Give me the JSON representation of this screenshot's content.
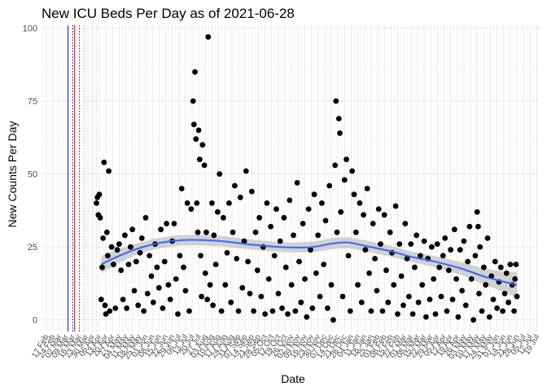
{
  "chart_data": {
    "type": "scatter",
    "title": "New ICU Beds Per Day as of 2021-06-28",
    "xlabel": "Date",
    "ylabel": "New Counts Per Day",
    "ylim": [
      -4,
      101
    ],
    "yticks": [
      0,
      25,
      50,
      75,
      100
    ],
    "xlim": [
      "2020-02-12",
      "2021-07-22"
    ],
    "x_tick_labels": [
      "17 Feb",
      "24 Feb",
      "02 Mar",
      "09 Mar",
      "16 Mar",
      "23 Mar",
      "30 Mar",
      "06 Apr",
      "13 Apr",
      "20 Apr",
      "27 Apr",
      "04 May",
      "11 May",
      "18 May",
      "25 May",
      "01 Jun",
      "08 Jun",
      "15 Jun",
      "22 Jun",
      "29 Jun",
      "06 Jul",
      "13 Jul",
      "20 Jul",
      "27 Jul",
      "03 Aug",
      "10 Aug",
      "17 Aug",
      "24 Aug",
      "31 Aug",
      "07 Sep",
      "14 Sep",
      "21 Sep",
      "28 Sep",
      "05 Oct",
      "12 Oct",
      "19 Oct",
      "26 Oct",
      "02 Nov",
      "09 Nov",
      "16 Nov",
      "23 Nov",
      "30 Nov",
      "07 Dec",
      "14 Dec",
      "21 Dec",
      "28 Dec",
      "04 Jan",
      "11 Jan",
      "18 Jan",
      "25 Jan",
      "01 Feb",
      "08 Feb",
      "15 Feb",
      "22 Feb",
      "01 Mar",
      "08 Mar",
      "15 Mar",
      "22 Mar",
      "29 Mar",
      "05 Apr",
      "12 Apr",
      "19 Apr",
      "26 Apr",
      "03 May",
      "10 May",
      "17 May",
      "24 May",
      "31 May",
      "07 Jun",
      "14 Jun",
      "21 Jun",
      "28 Jun",
      "05 Jul",
      "12 Jul",
      "19 Jul"
    ],
    "x_tick_dates": [
      "2020-02-17",
      "2020-02-24",
      "2020-03-02",
      "2020-03-09",
      "2020-03-16",
      "2020-03-23",
      "2020-03-30",
      "2020-04-06",
      "2020-04-13",
      "2020-04-20",
      "2020-04-27",
      "2020-05-04",
      "2020-05-11",
      "2020-05-18",
      "2020-05-25",
      "2020-06-01",
      "2020-06-08",
      "2020-06-15",
      "2020-06-22",
      "2020-06-29",
      "2020-07-06",
      "2020-07-13",
      "2020-07-20",
      "2020-07-27",
      "2020-08-03",
      "2020-08-10",
      "2020-08-17",
      "2020-08-24",
      "2020-08-31",
      "2020-09-07",
      "2020-09-14",
      "2020-09-21",
      "2020-09-28",
      "2020-10-05",
      "2020-10-12",
      "2020-10-19",
      "2020-10-26",
      "2020-11-02",
      "2020-11-09",
      "2020-11-16",
      "2020-11-23",
      "2020-11-30",
      "2020-12-07",
      "2020-12-14",
      "2020-12-21",
      "2020-12-28",
      "2021-01-04",
      "2021-01-11",
      "2021-01-18",
      "2021-01-25",
      "2021-02-01",
      "2021-02-08",
      "2021-02-15",
      "2021-02-22",
      "2021-03-01",
      "2021-03-08",
      "2021-03-15",
      "2021-03-22",
      "2021-03-29",
      "2021-04-05",
      "2021-04-12",
      "2021-04-19",
      "2021-04-26",
      "2021-05-03",
      "2021-05-10",
      "2021-05-17",
      "2021-05-24",
      "2021-05-31",
      "2021-06-07",
      "2021-06-14",
      "2021-06-21",
      "2021-06-28",
      "2021-07-05",
      "2021-07-12",
      "2021-07-19"
    ],
    "grid": true,
    "legend": "none",
    "reference_lines": [
      {
        "date": "2020-03-11",
        "color": "#0000ff",
        "style": "solid"
      },
      {
        "date": "2020-03-16",
        "color": "#0000cc",
        "style": "dotted"
      },
      {
        "date": "2020-03-18",
        "color": "#cc0000",
        "style": "solid"
      },
      {
        "date": "2020-03-23",
        "color": "#cc0000",
        "style": "dotted"
      },
      {
        "date": "2020-03-28",
        "color": "#e6a0a0",
        "style": "dotted"
      },
      {
        "date": "2020-04-01",
        "color": "#f0c0c0",
        "style": "dotted"
      },
      {
        "date": "2020-04-06",
        "color": "#f0c8c8",
        "style": "dotted"
      },
      {
        "date": "2020-04-10",
        "color": "#f0c8c8",
        "style": "dotted"
      }
    ],
    "point_color": "#000000",
    "trend_color": "#3366ff",
    "band_color": "#bfbfbf",
    "trend": [
      {
        "x": "2020-04-15",
        "y": 19
      },
      {
        "x": "2020-05-01",
        "y": 21.5
      },
      {
        "x": "2020-05-20",
        "y": 24
      },
      {
        "x": "2020-06-10",
        "y": 26
      },
      {
        "x": "2020-07-05",
        "y": 27.2
      },
      {
        "x": "2020-07-25",
        "y": 27.4
      },
      {
        "x": "2020-08-20",
        "y": 27
      },
      {
        "x": "2020-09-15",
        "y": 26
      },
      {
        "x": "2020-10-10",
        "y": 25.2
      },
      {
        "x": "2020-11-05",
        "y": 24.8
      },
      {
        "x": "2020-11-25",
        "y": 25
      },
      {
        "x": "2020-12-15",
        "y": 26.2
      },
      {
        "x": "2021-01-01",
        "y": 26.5
      },
      {
        "x": "2021-01-20",
        "y": 25.3
      },
      {
        "x": "2021-02-15",
        "y": 23.5
      },
      {
        "x": "2021-03-10",
        "y": 21.5
      },
      {
        "x": "2021-04-05",
        "y": 19.8
      },
      {
        "x": "2021-05-01",
        "y": 17.5
      },
      {
        "x": "2021-05-25",
        "y": 14.8
      },
      {
        "x": "2021-06-15",
        "y": 13
      },
      {
        "x": "2021-06-28",
        "y": 12
      }
    ],
    "band": [
      {
        "x": "2020-04-15",
        "lo": 16,
        "hi": 22
      },
      {
        "x": "2020-05-01",
        "lo": 19,
        "hi": 24
      },
      {
        "x": "2020-05-20",
        "lo": 22,
        "hi": 26
      },
      {
        "x": "2020-06-10",
        "lo": 24.2,
        "hi": 27.8
      },
      {
        "x": "2020-07-05",
        "lo": 25.4,
        "hi": 29
      },
      {
        "x": "2020-07-25",
        "lo": 25.6,
        "hi": 29.2
      },
      {
        "x": "2020-08-20",
        "lo": 25.2,
        "hi": 28.8
      },
      {
        "x": "2020-09-15",
        "lo": 24.3,
        "hi": 27.7
      },
      {
        "x": "2020-10-10",
        "lo": 23.5,
        "hi": 26.9
      },
      {
        "x": "2020-11-05",
        "lo": 23.1,
        "hi": 26.5
      },
      {
        "x": "2020-11-25",
        "lo": 23.2,
        "hi": 26.8
      },
      {
        "x": "2020-12-15",
        "lo": 24.3,
        "hi": 28.1
      },
      {
        "x": "2021-01-01",
        "lo": 24.6,
        "hi": 28.4
      },
      {
        "x": "2021-01-20",
        "lo": 23.4,
        "hi": 27.2
      },
      {
        "x": "2021-02-15",
        "lo": 21.6,
        "hi": 25.4
      },
      {
        "x": "2021-03-10",
        "lo": 19.7,
        "hi": 23.3
      },
      {
        "x": "2021-04-05",
        "lo": 17.9,
        "hi": 21.7
      },
      {
        "x": "2021-05-01",
        "lo": 15.3,
        "hi": 19.7
      },
      {
        "x": "2021-05-25",
        "lo": 12,
        "hi": 17.6
      },
      {
        "x": "2021-06-15",
        "lo": 9.5,
        "hi": 16.5
      },
      {
        "x": "2021-06-28",
        "lo": 7.5,
        "hi": 16.5
      }
    ],
    "points": [
      [
        "2020-04-10",
        40
      ],
      [
        "2020-04-11",
        42
      ],
      [
        "2020-04-12",
        36
      ],
      [
        "2020-04-13",
        43
      ],
      [
        "2020-04-14",
        35
      ],
      [
        "2020-04-15",
        7
      ],
      [
        "2020-04-16",
        18
      ],
      [
        "2020-04-17",
        28
      ],
      [
        "2020-04-18",
        54
      ],
      [
        "2020-04-19",
        5
      ],
      [
        "2020-04-20",
        2
      ],
      [
        "2020-04-21",
        30
      ],
      [
        "2020-04-22",
        22
      ],
      [
        "2020-04-23",
        51
      ],
      [
        "2020-04-24",
        3
      ],
      [
        "2020-04-26",
        25
      ],
      [
        "2020-04-28",
        19
      ],
      [
        "2020-04-30",
        4
      ],
      [
        "2020-05-02",
        24
      ],
      [
        "2020-05-04",
        26
      ],
      [
        "2020-05-06",
        17
      ],
      [
        "2020-05-08",
        7
      ],
      [
        "2020-05-10",
        29
      ],
      [
        "2020-05-12",
        4
      ],
      [
        "2020-05-14",
        19
      ],
      [
        "2020-05-16",
        25
      ],
      [
        "2020-05-18",
        31
      ],
      [
        "2020-05-20",
        10
      ],
      [
        "2020-05-22",
        20
      ],
      [
        "2020-05-24",
        5
      ],
      [
        "2020-05-26",
        23
      ],
      [
        "2020-05-28",
        28
      ],
      [
        "2020-05-30",
        3
      ],
      [
        "2020-06-01",
        35
      ],
      [
        "2020-06-03",
        9
      ],
      [
        "2020-06-05",
        22
      ],
      [
        "2020-06-07",
        15
      ],
      [
        "2020-06-09",
        6
      ],
      [
        "2020-06-11",
        26
      ],
      [
        "2020-06-13",
        18
      ],
      [
        "2020-06-15",
        11
      ],
      [
        "2020-06-17",
        31
      ],
      [
        "2020-06-19",
        4
      ],
      [
        "2020-06-21",
        20
      ],
      [
        "2020-06-23",
        33
      ],
      [
        "2020-06-25",
        12
      ],
      [
        "2020-06-27",
        7
      ],
      [
        "2020-06-29",
        27
      ],
      [
        "2020-07-01",
        33
      ],
      [
        "2020-07-03",
        14
      ],
      [
        "2020-07-05",
        2
      ],
      [
        "2020-07-07",
        22
      ],
      [
        "2020-07-09",
        45
      ],
      [
        "2020-07-11",
        18
      ],
      [
        "2020-07-13",
        10
      ],
      [
        "2020-07-15",
        40
      ],
      [
        "2020-07-17",
        3
      ],
      [
        "2020-07-19",
        38
      ],
      [
        "2020-07-21",
        75
      ],
      [
        "2020-07-22",
        67
      ],
      [
        "2020-07-23",
        85
      ],
      [
        "2020-07-24",
        62
      ],
      [
        "2020-07-25",
        40
      ],
      [
        "2020-07-26",
        30
      ],
      [
        "2020-07-27",
        65
      ],
      [
        "2020-07-28",
        55
      ],
      [
        "2020-07-29",
        22
      ],
      [
        "2020-07-30",
        8
      ],
      [
        "2020-07-31",
        60
      ],
      [
        "2020-08-02",
        53
      ],
      [
        "2020-08-03",
        16
      ],
      [
        "2020-08-04",
        30
      ],
      [
        "2020-08-05",
        7
      ],
      [
        "2020-08-06",
        97
      ],
      [
        "2020-08-08",
        12
      ],
      [
        "2020-08-10",
        40
      ],
      [
        "2020-08-11",
        5
      ],
      [
        "2020-08-12",
        29
      ],
      [
        "2020-08-14",
        19
      ],
      [
        "2020-08-16",
        37
      ],
      [
        "2020-08-18",
        50
      ],
      [
        "2020-08-20",
        3
      ],
      [
        "2020-08-22",
        35
      ],
      [
        "2020-08-24",
        12
      ],
      [
        "2020-08-26",
        23
      ],
      [
        "2020-08-28",
        40
      ],
      [
        "2020-08-30",
        6
      ],
      [
        "2020-09-01",
        30
      ],
      [
        "2020-09-03",
        46
      ],
      [
        "2020-09-05",
        21
      ],
      [
        "2020-09-07",
        3
      ],
      [
        "2020-09-09",
        42
      ],
      [
        "2020-09-11",
        11
      ],
      [
        "2020-09-13",
        27
      ],
      [
        "2020-09-15",
        51
      ],
      [
        "2020-09-17",
        20
      ],
      [
        "2020-09-19",
        9
      ],
      [
        "2020-09-21",
        44
      ],
      [
        "2020-09-23",
        3
      ],
      [
        "2020-09-25",
        30
      ],
      [
        "2020-09-27",
        17
      ],
      [
        "2020-09-29",
        35
      ],
      [
        "2020-10-01",
        8
      ],
      [
        "2020-10-03",
        25
      ],
      [
        "2020-10-05",
        2
      ],
      [
        "2020-10-07",
        40
      ],
      [
        "2020-10-09",
        14
      ],
      [
        "2020-10-11",
        32
      ],
      [
        "2020-10-13",
        3
      ],
      [
        "2020-10-15",
        22
      ],
      [
        "2020-10-17",
        38
      ],
      [
        "2020-10-19",
        9
      ],
      [
        "2020-10-21",
        27
      ],
      [
        "2020-10-23",
        4
      ],
      [
        "2020-10-25",
        35
      ],
      [
        "2020-10-27",
        18
      ],
      [
        "2020-10-29",
        2
      ],
      [
        "2020-10-31",
        41
      ],
      [
        "2020-11-02",
        12
      ],
      [
        "2020-11-04",
        29
      ],
      [
        "2020-11-06",
        3
      ],
      [
        "2020-11-08",
        47
      ],
      [
        "2020-11-10",
        20
      ],
      [
        "2020-11-12",
        6
      ],
      [
        "2020-11-14",
        33
      ],
      [
        "2020-11-16",
        14
      ],
      [
        "2020-11-18",
        1
      ],
      [
        "2020-11-20",
        38
      ],
      [
        "2020-11-22",
        24
      ],
      [
        "2020-11-24",
        4
      ],
      [
        "2020-11-26",
        43
      ],
      [
        "2020-11-28",
        16
      ],
      [
        "2020-11-30",
        29
      ],
      [
        "2020-12-02",
        8
      ],
      [
        "2020-12-04",
        40
      ],
      [
        "2020-12-06",
        19
      ],
      [
        "2020-12-08",
        34
      ],
      [
        "2020-12-10",
        4
      ],
      [
        "2020-12-12",
        46
      ],
      [
        "2020-12-14",
        12
      ],
      [
        "2020-12-16",
        0
      ],
      [
        "2020-12-18",
        53
      ],
      [
        "2020-12-19",
        75
      ],
      [
        "2020-12-20",
        30
      ],
      [
        "2020-12-22",
        69
      ],
      [
        "2020-12-23",
        64
      ],
      [
        "2020-12-24",
        37
      ],
      [
        "2020-12-26",
        8
      ],
      [
        "2020-12-28",
        48
      ],
      [
        "2020-12-30",
        55
      ],
      [
        "2021-01-01",
        22
      ],
      [
        "2021-01-03",
        3
      ],
      [
        "2021-01-05",
        51
      ],
      [
        "2021-01-07",
        43
      ],
      [
        "2021-01-09",
        30
      ],
      [
        "2021-01-11",
        12
      ],
      [
        "2021-01-13",
        40
      ],
      [
        "2021-01-15",
        6
      ],
      [
        "2021-01-17",
        36
      ],
      [
        "2021-01-19",
        24
      ],
      [
        "2021-01-21",
        45
      ],
      [
        "2021-01-23",
        16
      ],
      [
        "2021-01-25",
        3
      ],
      [
        "2021-01-27",
        33
      ],
      [
        "2021-01-29",
        21
      ],
      [
        "2021-01-31",
        10
      ],
      [
        "2021-02-02",
        38
      ],
      [
        "2021-02-04",
        26
      ],
      [
        "2021-02-06",
        3
      ],
      [
        "2021-02-08",
        36
      ],
      [
        "2021-02-10",
        17
      ],
      [
        "2021-02-12",
        6
      ],
      [
        "2021-02-14",
        30
      ],
      [
        "2021-02-16",
        23
      ],
      [
        "2021-02-18",
        12
      ],
      [
        "2021-02-20",
        39
      ],
      [
        "2021-02-22",
        2
      ],
      [
        "2021-02-24",
        26
      ],
      [
        "2021-02-26",
        15
      ],
      [
        "2021-02-28",
        5
      ],
      [
        "2021-03-02",
        33
      ],
      [
        "2021-03-04",
        21
      ],
      [
        "2021-03-06",
        8
      ],
      [
        "2021-03-08",
        26
      ],
      [
        "2021-03-10",
        2
      ],
      [
        "2021-03-12",
        18
      ],
      [
        "2021-03-14",
        29
      ],
      [
        "2021-03-16",
        6
      ],
      [
        "2021-03-18",
        22
      ],
      [
        "2021-03-20",
        12
      ],
      [
        "2021-03-22",
        27
      ],
      [
        "2021-03-24",
        1
      ],
      [
        "2021-03-26",
        21
      ],
      [
        "2021-03-28",
        7
      ],
      [
        "2021-03-30",
        25
      ],
      [
        "2021-04-01",
        14
      ],
      [
        "2021-04-03",
        2
      ],
      [
        "2021-04-05",
        26
      ],
      [
        "2021-04-07",
        18
      ],
      [
        "2021-04-09",
        8
      ],
      [
        "2021-04-11",
        22
      ],
      [
        "2021-04-13",
        28
      ],
      [
        "2021-04-15",
        3
      ],
      [
        "2021-04-17",
        17
      ],
      [
        "2021-04-19",
        24
      ],
      [
        "2021-04-21",
        7
      ],
      [
        "2021-04-23",
        31
      ],
      [
        "2021-04-25",
        14
      ],
      [
        "2021-04-27",
        1
      ],
      [
        "2021-04-29",
        24
      ],
      [
        "2021-05-01",
        10
      ],
      [
        "2021-05-03",
        27
      ],
      [
        "2021-05-05",
        5
      ],
      [
        "2021-05-07",
        20
      ],
      [
        "2021-05-09",
        32
      ],
      [
        "2021-05-11",
        14
      ],
      [
        "2021-05-13",
        0
      ],
      [
        "2021-05-15",
        22
      ],
      [
        "2021-05-17",
        37
      ],
      [
        "2021-05-18",
        32
      ],
      [
        "2021-05-19",
        9
      ],
      [
        "2021-05-20",
        25
      ],
      [
        "2021-05-22",
        3
      ],
      [
        "2021-05-24",
        18
      ],
      [
        "2021-05-26",
        12
      ],
      [
        "2021-05-28",
        28
      ],
      [
        "2021-05-30",
        1
      ],
      [
        "2021-06-01",
        15
      ],
      [
        "2021-06-03",
        7
      ],
      [
        "2021-06-05",
        20
      ],
      [
        "2021-06-07",
        4
      ],
      [
        "2021-06-09",
        13
      ],
      [
        "2021-06-11",
        18
      ],
      [
        "2021-06-13",
        3
      ],
      [
        "2021-06-15",
        9
      ],
      [
        "2021-06-17",
        16
      ],
      [
        "2021-06-19",
        6
      ],
      [
        "2021-06-21",
        19
      ],
      [
        "2021-06-23",
        12
      ],
      [
        "2021-06-25",
        3
      ],
      [
        "2021-06-26",
        14
      ],
      [
        "2021-06-27",
        19
      ],
      [
        "2021-06-28",
        8
      ]
    ]
  }
}
